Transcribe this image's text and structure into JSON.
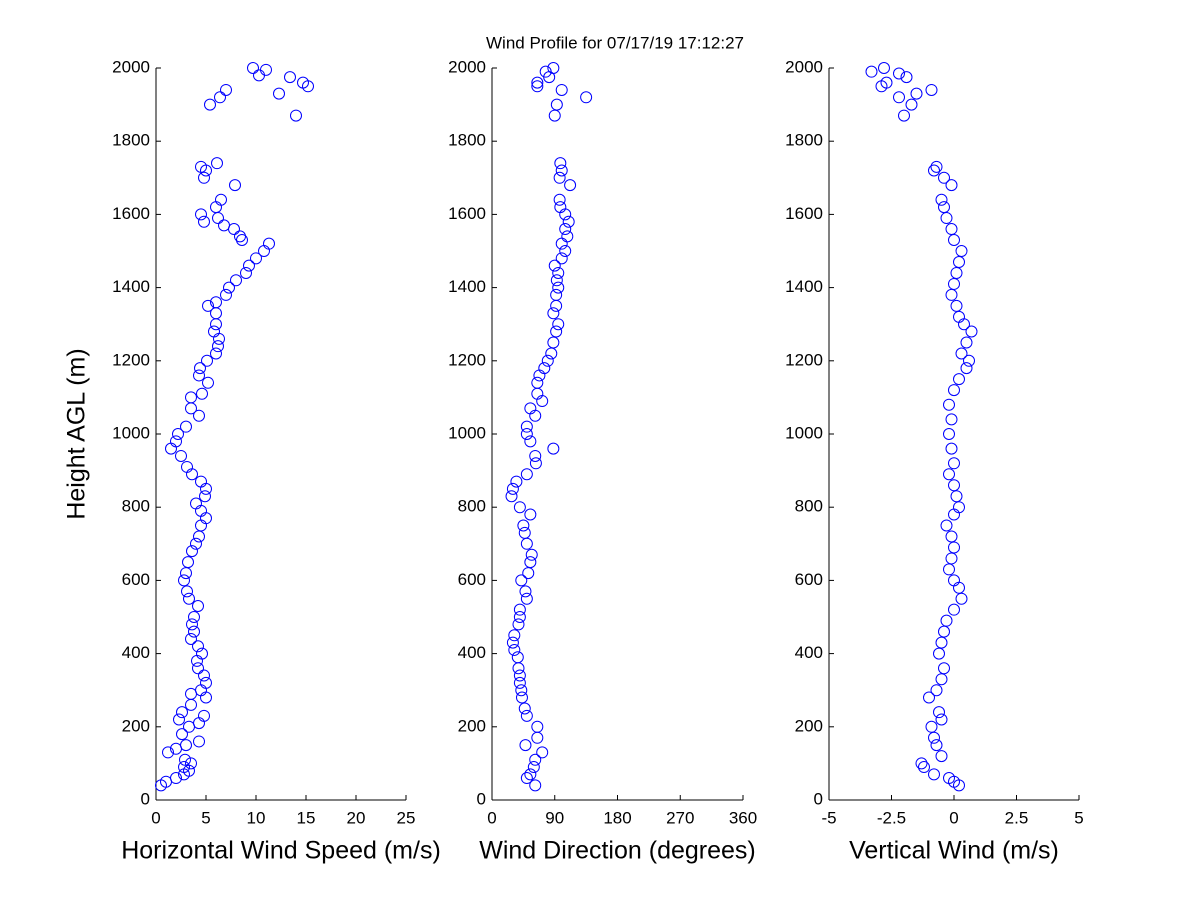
{
  "chart_data": [
    {
      "type": "scatter",
      "title": "Wind Profile for  07/17/19 17:12:27",
      "ylabel": "Height AGL (m)",
      "xlabel": "Horizontal Wind Speed (m/s)",
      "color": "#0000ff",
      "xlim": [
        0,
        25
      ],
      "xticks": [
        0,
        5,
        10,
        15,
        20,
        25
      ],
      "ylim": [
        0,
        2000
      ],
      "yticks": [
        0,
        200,
        400,
        600,
        800,
        1000,
        1200,
        1400,
        1600,
        1800,
        2000
      ],
      "x": [
        0.5,
        1,
        2,
        2.8,
        3.3,
        2.8,
        3.5,
        2.9,
        1.2,
        2,
        3,
        4.3,
        2.6,
        3.3,
        4.3,
        2.3,
        4.8,
        2.6,
        3.5,
        5,
        3.5,
        4.5,
        5,
        4.8,
        4.2,
        4.1,
        4.6,
        4.2,
        3.5,
        3.8,
        3.6,
        3.8,
        4.2,
        3.3,
        3.1,
        2.8,
        3,
        3.2,
        3.6,
        4,
        4.3,
        4.5,
        5,
        4.5,
        4,
        4.9,
        5,
        4.5,
        3.6,
        3.1,
        2.5,
        1.5,
        2,
        2.2,
        3,
        4.3,
        3.5,
        3.5,
        4.6,
        5.2,
        4.3,
        4.4,
        5.1,
        6,
        6.2,
        6.3,
        5.8,
        6,
        6,
        5.2,
        6,
        7,
        7.3,
        8,
        9,
        9.3,
        10,
        10.8,
        11.3,
        8.6,
        8.4,
        7.8,
        6.8,
        6.2,
        4.8,
        4.5,
        6,
        6.5,
        7.9,
        4.8,
        5,
        4.5,
        6.1,
        14,
        5.4,
        6.4,
        12.3,
        7,
        15.2,
        14.7,
        13.4,
        10.3,
        11,
        9.7
      ],
      "values": [
        40,
        50,
        60,
        70,
        80,
        90,
        100,
        110,
        130,
        140,
        150,
        160,
        180,
        200,
        210,
        220,
        230,
        240,
        260,
        280,
        290,
        300,
        320,
        340,
        360,
        380,
        400,
        420,
        440,
        460,
        480,
        500,
        530,
        550,
        570,
        600,
        620,
        650,
        680,
        700,
        720,
        750,
        770,
        790,
        810,
        830,
        850,
        870,
        890,
        910,
        940,
        960,
        980,
        1000,
        1020,
        1050,
        1070,
        1100,
        1110,
        1140,
        1160,
        1180,
        1200,
        1220,
        1240,
        1260,
        1280,
        1300,
        1330,
        1350,
        1360,
        1380,
        1400,
        1420,
        1440,
        1460,
        1480,
        1500,
        1520,
        1530,
        1540,
        1560,
        1570,
        1590,
        1580,
        1600,
        1620,
        1640,
        1680,
        1700,
        1720,
        1730,
        1740,
        1870,
        1900,
        1920,
        1930,
        1940,
        1950,
        1960,
        1975,
        1980,
        1995,
        2000
      ]
    },
    {
      "type": "scatter",
      "xlabel": "Wind Direction (degrees)",
      "color": "#0000ff",
      "xlim": [
        0,
        360
      ],
      "xticks": [
        0,
        90,
        180,
        270,
        360
      ],
      "ylim": [
        0,
        2000
      ],
      "yticks": [
        0,
        200,
        400,
        600,
        800,
        1000,
        1200,
        1400,
        1600,
        1800,
        2000
      ],
      "x": [
        62,
        50,
        55,
        60,
        62,
        72,
        48,
        65,
        65,
        50,
        47,
        43,
        42,
        40,
        40,
        38,
        37,
        32,
        30,
        32,
        38,
        40,
        40,
        50,
        48,
        42,
        52,
        55,
        57,
        50,
        47,
        45,
        55,
        40,
        28,
        30,
        35,
        50,
        63,
        62,
        88,
        55,
        50,
        50,
        62,
        55,
        72,
        65,
        65,
        68,
        75,
        80,
        85,
        88,
        92,
        95,
        88,
        92,
        92,
        95,
        93,
        95,
        90,
        100,
        105,
        100,
        108,
        105,
        110,
        105,
        98,
        97,
        112,
        97,
        100,
        98,
        90,
        93,
        135,
        100,
        65,
        65,
        82,
        77,
        88
      ],
      "values": [
        40,
        60,
        70,
        90,
        110,
        130,
        150,
        170,
        200,
        230,
        250,
        280,
        300,
        320,
        340,
        360,
        390,
        410,
        430,
        450,
        480,
        500,
        520,
        550,
        570,
        600,
        620,
        650,
        670,
        700,
        730,
        750,
        780,
        800,
        830,
        850,
        870,
        890,
        920,
        940,
        960,
        980,
        1000,
        1020,
        1050,
        1070,
        1090,
        1110,
        1140,
        1160,
        1180,
        1200,
        1220,
        1250,
        1280,
        1300,
        1330,
        1350,
        1380,
        1400,
        1420,
        1440,
        1460,
        1480,
        1500,
        1520,
        1540,
        1560,
        1580,
        1600,
        1620,
        1640,
        1680,
        1700,
        1720,
        1740,
        1870,
        1900,
        1920,
        1940,
        1950,
        1960,
        1975,
        1990,
        2000
      ]
    },
    {
      "type": "scatter",
      "xlabel": "Vertical Wind (m/s)",
      "color": "#0000ff",
      "xlim": [
        -5,
        5
      ],
      "xticks": [
        -5,
        -2.5,
        0,
        2.5,
        5
      ],
      "ylim": [
        0,
        2000
      ],
      "yticks": [
        0,
        200,
        400,
        600,
        800,
        1000,
        1200,
        1400,
        1600,
        1800,
        2000
      ],
      "x": [
        0.2,
        0,
        -0.2,
        -0.8,
        -1.2,
        -1.3,
        -0.5,
        -0.7,
        -0.8,
        -0.9,
        -0.5,
        -0.6,
        -1,
        -0.7,
        -0.5,
        -0.4,
        -0.6,
        -0.5,
        -0.4,
        -0.3,
        0,
        0.3,
        0.2,
        0,
        -0.2,
        -0.1,
        0,
        -0.1,
        -0.3,
        0,
        0.2,
        0.1,
        0,
        -0.2,
        0,
        -0.1,
        -0.2,
        -0.1,
        -0.2,
        0,
        0.2,
        0.5,
        0.6,
        0.3,
        0.5,
        0.7,
        0.4,
        0.2,
        0.1,
        -0.1,
        0,
        0.1,
        0.2,
        0.3,
        0,
        -0.1,
        -0.3,
        -0.4,
        -0.5,
        -0.1,
        -0.4,
        -0.8,
        -0.7,
        -2,
        -1.7,
        -2.2,
        -1.5,
        -0.9,
        -2.9,
        -2.7,
        -1.9,
        -2.2,
        -3.3,
        -2.8
      ],
      "values": [
        40,
        50,
        60,
        70,
        90,
        100,
        120,
        150,
        170,
        200,
        220,
        240,
        280,
        300,
        330,
        360,
        400,
        430,
        460,
        490,
        520,
        550,
        580,
        600,
        630,
        660,
        690,
        720,
        750,
        780,
        800,
        830,
        860,
        890,
        920,
        960,
        1000,
        1040,
        1080,
        1120,
        1150,
        1180,
        1200,
        1220,
        1250,
        1280,
        1300,
        1320,
        1350,
        1380,
        1410,
        1440,
        1470,
        1500,
        1530,
        1560,
        1590,
        1620,
        1640,
        1680,
        1700,
        1720,
        1730,
        1870,
        1900,
        1920,
        1930,
        1940,
        1950,
        1960,
        1975,
        1985,
        1990,
        2000
      ]
    }
  ]
}
